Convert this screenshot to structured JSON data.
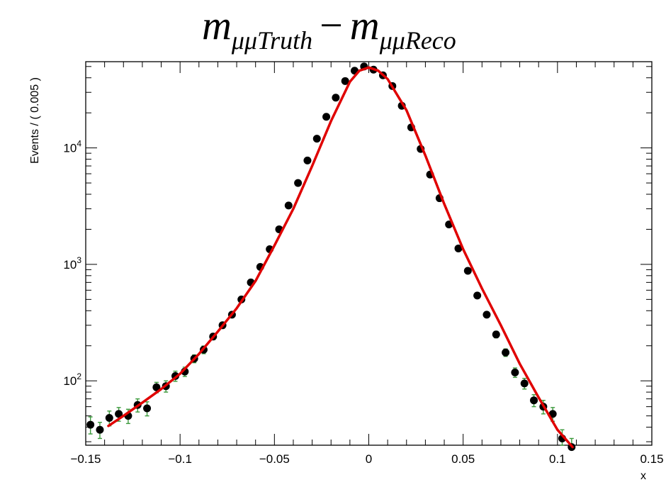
{
  "chart_data": {
    "type": "scatter",
    "title": {
      "main": "m",
      "sub1": "μμTruth",
      "op": "−",
      "main2": "m",
      "sub2": "μμReco"
    },
    "xlabel": "x",
    "ylabel": "Events / ( 0.005 )",
    "xlim": [
      -0.15,
      0.15
    ],
    "ylim": [
      28,
      55000
    ],
    "yscale": "log",
    "grid": false,
    "x_ticks": [
      {
        "value": -0.15,
        "label": "−0.15"
      },
      {
        "value": -0.1,
        "label": "−0.1"
      },
      {
        "value": -0.05,
        "label": "−0.05"
      },
      {
        "value": 0,
        "label": "0"
      },
      {
        "value": 0.05,
        "label": "0.05"
      },
      {
        "value": 0.1,
        "label": "0.1"
      },
      {
        "value": 0.15,
        "label": "0.15"
      }
    ],
    "y_ticks": [
      {
        "value": 100,
        "base": "10",
        "exp": "2"
      },
      {
        "value": 1000,
        "base": "10",
        "exp": "3"
      },
      {
        "value": 10000,
        "base": "10",
        "exp": "4"
      }
    ],
    "colors": {
      "points": "#000000",
      "errors": "#3c9a3c",
      "fit": "#e00000"
    },
    "series": [
      {
        "type": "points",
        "x": [
          -0.1475,
          -0.1425,
          -0.1375,
          -0.1325,
          -0.1275,
          -0.1225,
          -0.1175,
          -0.1125,
          -0.1075,
          -0.1025,
          -0.0975,
          -0.0925,
          -0.0875,
          -0.0825,
          -0.0775,
          -0.0725,
          -0.0675,
          -0.0625,
          -0.0575,
          -0.0525,
          -0.0475,
          -0.0425,
          -0.0375,
          -0.0325,
          -0.0275,
          -0.0225,
          -0.0175,
          -0.0125,
          -0.0075,
          -0.0025,
          0.0025,
          0.0075,
          0.0125,
          0.0175,
          0.0225,
          0.0275,
          0.0325,
          0.0375,
          0.0425,
          0.0475,
          0.0525,
          0.0575,
          0.0625,
          0.0675,
          0.0725,
          0.0775,
          0.0825,
          0.0875,
          0.0925,
          0.0975,
          0.1025,
          0.1075
        ],
        "y": [
          42,
          38,
          48,
          52,
          50,
          62,
          58,
          88,
          90,
          110,
          120,
          155,
          185,
          240,
          300,
          370,
          500,
          700,
          950,
          1350,
          2000,
          3200,
          5000,
          7800,
          12000,
          18500,
          27000,
          37500,
          46000,
          50000,
          47000,
          42000,
          34000,
          23000,
          15000,
          9800,
          5900,
          3700,
          2200,
          1370,
          880,
          540,
          370,
          250,
          175,
          118,
          95,
          68,
          60,
          52,
          32,
          27
        ],
        "yerr": [
          7,
          6,
          7,
          7,
          7,
          8,
          8,
          9,
          10,
          11,
          11,
          12,
          14,
          15,
          17,
          19,
          22,
          26,
          31,
          37,
          45,
          57,
          71,
          88,
          110,
          136,
          164,
          194,
          214,
          224,
          217,
          205,
          184,
          152,
          122,
          99,
          77,
          61,
          47,
          37,
          30,
          23,
          19,
          16,
          13,
          11,
          10,
          8,
          8,
          7,
          6,
          5
        ]
      },
      {
        "type": "fit",
        "x": [
          -0.138,
          -0.13,
          -0.12,
          -0.11,
          -0.1,
          -0.09,
          -0.08,
          -0.07,
          -0.06,
          -0.05,
          -0.04,
          -0.03,
          -0.02,
          -0.01,
          -0.005,
          0,
          0.005,
          0.01,
          0.02,
          0.03,
          0.04,
          0.05,
          0.06,
          0.07,
          0.08,
          0.09,
          0.1,
          0.108
        ],
        "y": [
          41,
          50,
          65,
          85,
          115,
          170,
          265,
          420,
          720,
          1450,
          3000,
          7000,
          17000,
          37000,
          46000,
          49000,
          46000,
          39000,
          21000,
          8600,
          3300,
          1350,
          620,
          300,
          140,
          72,
          38,
          27
        ]
      }
    ]
  }
}
